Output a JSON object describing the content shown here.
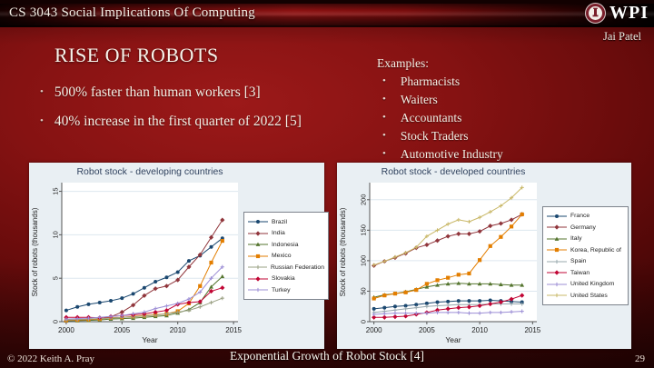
{
  "header": {
    "course_title": "CS 3043 Social Implications Of Computing",
    "logo_text": "WPI",
    "presenter": "Jai Patel"
  },
  "slide": {
    "title": "RISE OF ROBOTS",
    "bullets": [
      "500% faster than human workers [3]",
      "40% increase in the first quarter of 2022 [5]"
    ],
    "examples": {
      "heading": "Examples:",
      "items": [
        "Pharmacists",
        "Waiters",
        "Accountants",
        "Stock Traders",
        "Automotive Industry"
      ]
    }
  },
  "footer": {
    "copyright": "© 2022 Keith A. Pray",
    "caption": "Exponential Growth of Robot Stock [4]",
    "page_number": "29"
  },
  "colors": {
    "slide_red": "#851212",
    "chart_background": "#e9eff3",
    "grid_line": "#dde7ef"
  },
  "chart_data": [
    {
      "type": "line",
      "title": "Robot stock - developing countries",
      "xlabel": "Year",
      "ylabel": "Stock of robots (thousands)",
      "x": [
        2000,
        2001,
        2002,
        2003,
        2004,
        2005,
        2006,
        2007,
        2008,
        2009,
        2010,
        2011,
        2012,
        2013,
        2014
      ],
      "xlim": [
        1999.6,
        2015.4
      ],
      "ylim": [
        0,
        16
      ],
      "xticks": [
        2000,
        2005,
        2010,
        2015
      ],
      "yticks": [
        0,
        5,
        10,
        15
      ],
      "grid": true,
      "legend_position": "right",
      "series": [
        {
          "name": "Brazil",
          "color": "#1a476f",
          "marker": "circle",
          "values": [
            1.3,
            1.7,
            2.0,
            2.2,
            2.4,
            2.7,
            3.2,
            3.9,
            4.6,
            5.1,
            5.7,
            7.0,
            7.6,
            8.6,
            9.6
          ]
        },
        {
          "name": "India",
          "color": "#90353b",
          "marker": "diamond",
          "values": [
            0.1,
            0.2,
            0.25,
            0.3,
            0.55,
            1.1,
            1.9,
            3.0,
            3.8,
            4.1,
            4.8,
            6.3,
            7.7,
            9.7,
            11.7
          ]
        },
        {
          "name": "Indonesia",
          "color": "#55752f",
          "marker": "triangle",
          "values": [
            0.1,
            0.12,
            0.15,
            0.2,
            0.3,
            0.35,
            0.4,
            0.5,
            0.6,
            0.7,
            1.0,
            1.4,
            2.2,
            4.0,
            5.2
          ]
        },
        {
          "name": "Mexico",
          "color": "#e37e00",
          "marker": "square",
          "values": [
            0.15,
            0.2,
            0.25,
            0.3,
            0.45,
            0.5,
            0.6,
            0.7,
            0.8,
            0.9,
            1.2,
            2.1,
            4.1,
            6.8,
            9.3
          ]
        },
        {
          "name": "Russian Federation",
          "color": "#9aa083",
          "marker": "plus",
          "values": [
            0.2,
            0.25,
            0.3,
            0.35,
            0.4,
            0.5,
            0.55,
            0.65,
            0.75,
            0.9,
            1.1,
            1.3,
            1.7,
            2.2,
            2.7
          ]
        },
        {
          "name": "Slovakia",
          "color": "#c10534",
          "marker": "diamond",
          "values": [
            0.5,
            0.5,
            0.5,
            0.45,
            0.6,
            0.7,
            0.8,
            0.9,
            1.1,
            1.3,
            2.0,
            2.2,
            2.3,
            3.5,
            3.9
          ]
        },
        {
          "name": "Turkey",
          "color": "#9d8fd6",
          "marker": "plus",
          "values": [
            0.3,
            0.35,
            0.4,
            0.5,
            0.6,
            0.7,
            0.9,
            1.1,
            1.5,
            1.8,
            2.1,
            2.6,
            3.4,
            5.0,
            6.3
          ]
        }
      ]
    },
    {
      "type": "line",
      "title": "Robot stock - developed countries",
      "xlabel": "Year",
      "ylabel": "Stock of robots (thousands)",
      "x": [
        2000,
        2001,
        2002,
        2003,
        2004,
        2005,
        2006,
        2007,
        2008,
        2009,
        2010,
        2011,
        2012,
        2013,
        2014
      ],
      "xlim": [
        1999.6,
        2015.4
      ],
      "ylim": [
        0,
        228
      ],
      "xticks": [
        2000,
        2005,
        2010,
        2015
      ],
      "yticks": [
        0,
        50,
        100,
        150,
        200
      ],
      "grid": true,
      "legend_position": "right",
      "series": [
        {
          "name": "France",
          "color": "#1a476f",
          "marker": "circle",
          "values": [
            21,
            23,
            25,
            26,
            28,
            30,
            32,
            33,
            34,
            34,
            34,
            35,
            34,
            33,
            32
          ]
        },
        {
          "name": "Germany",
          "color": "#90353b",
          "marker": "diamond",
          "values": [
            92,
            99,
            105,
            112,
            121,
            126,
            133,
            140,
            144,
            144,
            148,
            157,
            161,
            167,
            176
          ]
        },
        {
          "name": "Italy",
          "color": "#55752f",
          "marker": "triangle",
          "values": [
            40,
            44,
            46,
            49,
            53,
            57,
            60,
            62,
            63,
            62,
            62,
            62,
            61,
            60,
            60
          ]
        },
        {
          "name": "Korea, Republic of",
          "color": "#e37e00",
          "marker": "square",
          "values": [
            38,
            43,
            46,
            48,
            52,
            62,
            68,
            72,
            77,
            79,
            101,
            124,
            139,
            156,
            176
          ]
        },
        {
          "name": "Spain",
          "color": "#98a8ae",
          "marker": "plus",
          "values": [
            15,
            17,
            19,
            21,
            23,
            25,
            26,
            27,
            28,
            28,
            28,
            29,
            29,
            29,
            29
          ]
        },
        {
          "name": "Taiwan",
          "color": "#c10534",
          "marker": "diamond",
          "values": [
            7,
            7,
            8,
            9,
            12,
            15,
            19,
            21,
            23,
            24,
            26,
            29,
            32,
            37,
            43
          ]
        },
        {
          "name": "United Kingdom",
          "color": "#9d8fd6",
          "marker": "plus",
          "values": [
            12,
            13,
            14,
            14,
            14,
            14,
            15,
            15,
            15,
            14,
            14,
            15,
            15,
            16,
            17
          ]
        },
        {
          "name": "United States",
          "color": "#c9b868",
          "marker": "plus",
          "values": [
            93,
            99,
            106,
            113,
            122,
            140,
            150,
            160,
            167,
            164,
            171,
            180,
            190,
            203,
            220
          ]
        }
      ]
    }
  ]
}
